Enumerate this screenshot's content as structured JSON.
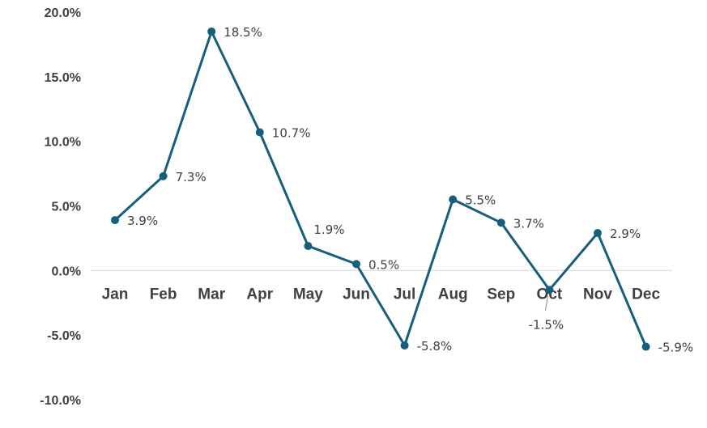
{
  "chart_data": {
    "type": "line",
    "title": "",
    "xlabel": "",
    "ylabel": "",
    "categories": [
      "Jan",
      "Feb",
      "Mar",
      "Apr",
      "May",
      "Jun",
      "Jul",
      "Aug",
      "Sep",
      "Oct",
      "Nov",
      "Dec"
    ],
    "series": [
      {
        "values": [
          3.9,
          7.3,
          18.5,
          10.7,
          1.9,
          0.5,
          -5.8,
          5.5,
          3.7,
          -1.5,
          2.9,
          -5.9
        ],
        "data_labels": [
          "3.9%",
          "7.3%",
          "18.5%",
          "10.7%",
          "1.9%",
          "0.5%",
          "-5.8%",
          "5.5%",
          "3.7%",
          "-1.5%",
          "2.9%",
          "-5.9%"
        ],
        "color": "#165e7a"
      }
    ],
    "ylim": [
      -10,
      20
    ],
    "yticks": [
      20,
      15,
      10,
      5,
      0,
      -5,
      -10
    ],
    "ytick_labels": [
      "20.0%",
      "15.0%",
      "10.0%",
      "5.0%",
      "0.0%",
      "-5.0%",
      "-10.0%"
    ],
    "grid": false,
    "legend": "none",
    "axis_color": "#d9d9d9",
    "text_color": "#404040"
  }
}
